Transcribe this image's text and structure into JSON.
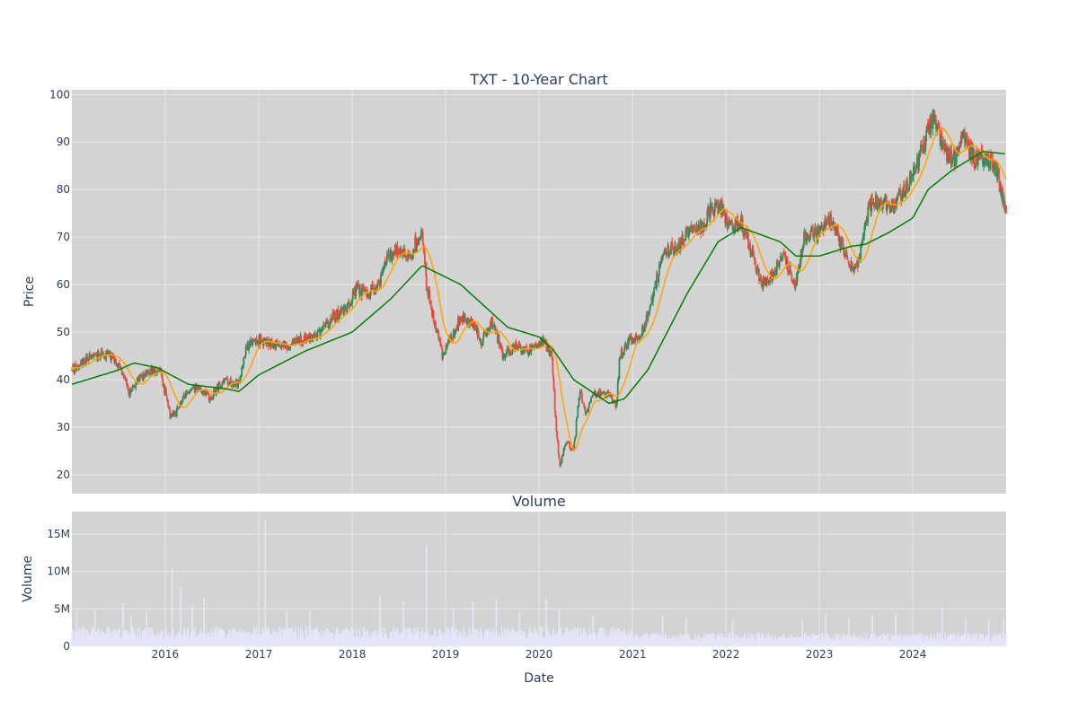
{
  "chart_data": [
    {
      "type": "candlestick",
      "title": "TXT - 10-Year Chart",
      "xlabel": "",
      "ylabel": "Price",
      "xlim": [
        "2015-01-01",
        "2024-12-31"
      ],
      "ylim": [
        16,
        101
      ],
      "y_ticks": [
        20,
        30,
        40,
        50,
        60,
        70,
        80,
        90,
        100
      ],
      "grid": true,
      "colors": {
        "up": "#2e8b57",
        "down": "#ef4a3c",
        "ma_short": "#ffa500",
        "ma_long": "#008000",
        "plot_bg": "#d3d3d3",
        "grid": "#e8e8e8"
      },
      "series": [
        {
          "kind": "close_price_anchors",
          "points": [
            [
              "2015-01-01",
              42
            ],
            [
              "2015-03-01",
              44.5
            ],
            [
              "2015-05-01",
              45.5
            ],
            [
              "2015-06-20",
              44
            ],
            [
              "2015-08-01",
              40
            ],
            [
              "2015-08-10",
              37
            ],
            [
              "2015-09-01",
              39
            ],
            [
              "2015-11-01",
              42
            ],
            [
              "2015-12-15",
              41.5
            ],
            [
              "2016-01-20",
              32.5
            ],
            [
              "2016-02-10",
              33
            ],
            [
              "2016-03-15",
              37
            ],
            [
              "2016-05-01",
              38.5
            ],
            [
              "2016-06-25",
              36
            ],
            [
              "2016-08-15",
              40
            ],
            [
              "2016-10-15",
              39
            ],
            [
              "2016-11-15",
              47
            ],
            [
              "2016-12-15",
              48.5
            ],
            [
              "2017-03-01",
              47.5
            ],
            [
              "2017-05-01",
              47
            ],
            [
              "2017-06-15",
              48.5
            ],
            [
              "2017-08-15",
              49
            ],
            [
              "2017-10-15",
              53
            ],
            [
              "2017-12-15",
              55
            ],
            [
              "2018-01-15",
              59
            ],
            [
              "2018-03-01",
              58
            ],
            [
              "2018-04-15",
              60
            ],
            [
              "2018-05-15",
              65.5
            ],
            [
              "2018-06-15",
              67
            ],
            [
              "2018-08-15",
              66
            ],
            [
              "2018-10-01",
              72
            ],
            [
              "2018-10-15",
              61
            ],
            [
              "2018-11-01",
              56
            ],
            [
              "2018-12-20",
              45
            ],
            [
              "2019-01-15",
              48
            ],
            [
              "2019-03-01",
              53
            ],
            [
              "2019-04-15",
              52
            ],
            [
              "2019-05-20",
              48
            ],
            [
              "2019-07-01",
              52
            ],
            [
              "2019-08-15",
              45
            ],
            [
              "2019-10-01",
              47
            ],
            [
              "2019-12-01",
              46
            ],
            [
              "2020-01-20",
              48
            ],
            [
              "2020-02-20",
              45
            ],
            [
              "2020-03-10",
              28
            ],
            [
              "2020-03-23",
              22
            ],
            [
              "2020-04-15",
              27
            ],
            [
              "2020-05-15",
              25
            ],
            [
              "2020-06-08",
              38
            ],
            [
              "2020-06-30",
              33
            ],
            [
              "2020-08-01",
              37
            ],
            [
              "2020-10-01",
              37
            ],
            [
              "2020-10-30",
              34
            ],
            [
              "2020-11-10",
              45
            ],
            [
              "2020-12-15",
              48
            ],
            [
              "2021-02-01",
              49
            ],
            [
              "2021-03-15",
              56
            ],
            [
              "2021-05-01",
              67
            ],
            [
              "2021-07-01",
              68
            ],
            [
              "2021-08-01",
              71
            ],
            [
              "2021-10-01",
              72
            ],
            [
              "2021-11-01",
              76
            ],
            [
              "2021-12-15",
              76
            ],
            [
              "2022-01-15",
              72
            ],
            [
              "2022-03-01",
              73
            ],
            [
              "2022-04-15",
              66
            ],
            [
              "2022-05-20",
              60
            ],
            [
              "2022-07-01",
              62
            ],
            [
              "2022-08-15",
              66
            ],
            [
              "2022-10-01",
              60
            ],
            [
              "2022-11-01",
              70
            ],
            [
              "2023-01-01",
              71
            ],
            [
              "2023-02-15",
              74
            ],
            [
              "2023-04-01",
              68
            ],
            [
              "2023-05-01",
              64
            ],
            [
              "2023-06-01",
              64
            ],
            [
              "2023-07-15",
              77
            ],
            [
              "2023-09-01",
              78
            ],
            [
              "2023-10-15",
              76
            ],
            [
              "2023-12-01",
              80
            ],
            [
              "2024-01-15",
              85
            ],
            [
              "2024-03-20",
              95
            ],
            [
              "2024-05-01",
              88
            ],
            [
              "2024-06-15",
              86
            ],
            [
              "2024-07-15",
              91
            ],
            [
              "2024-09-01",
              86
            ],
            [
              "2024-10-15",
              87
            ],
            [
              "2024-11-15",
              85
            ],
            [
              "2024-12-31",
              76
            ]
          ]
        },
        {
          "kind": "moving_average_long",
          "points": [
            [
              "2015-01-01",
              39
            ],
            [
              "2015-07-01",
              42
            ],
            [
              "2015-09-01",
              43.5
            ],
            [
              "2015-12-01",
              42.5
            ],
            [
              "2016-04-01",
              39
            ],
            [
              "2016-09-01",
              38
            ],
            [
              "2016-10-15",
              37.5
            ],
            [
              "2017-01-01",
              41
            ],
            [
              "2017-07-01",
              46
            ],
            [
              "2018-01-01",
              50
            ],
            [
              "2018-06-01",
              57
            ],
            [
              "2018-10-01",
              64
            ],
            [
              "2019-03-01",
              60
            ],
            [
              "2019-09-01",
              51
            ],
            [
              "2020-01-01",
              49
            ],
            [
              "2020-03-01",
              46
            ],
            [
              "2020-05-15",
              40
            ],
            [
              "2020-10-01",
              35
            ],
            [
              "2020-12-01",
              36
            ],
            [
              "2021-03-01",
              42
            ],
            [
              "2021-08-01",
              58
            ],
            [
              "2021-12-01",
              69
            ],
            [
              "2022-03-01",
              72
            ],
            [
              "2022-08-01",
              69
            ],
            [
              "2022-10-01",
              66
            ],
            [
              "2023-01-01",
              66
            ],
            [
              "2023-05-01",
              68
            ],
            [
              "2023-07-01",
              68.5
            ],
            [
              "2023-10-01",
              71
            ],
            [
              "2024-01-01",
              74
            ],
            [
              "2024-03-01",
              80
            ],
            [
              "2024-06-01",
              84
            ],
            [
              "2024-10-01",
              88
            ],
            [
              "2024-12-31",
              87.5
            ]
          ]
        }
      ]
    },
    {
      "type": "bar",
      "title": "Volume",
      "xlabel": "Date",
      "ylabel": "Volume",
      "xlim": [
        "2015-01-01",
        "2024-12-31"
      ],
      "ylim": [
        0,
        18000000
      ],
      "y_ticks": [
        0,
        5000000,
        10000000,
        15000000
      ],
      "y_tick_labels": [
        "0",
        "5M",
        "10M",
        "15M"
      ],
      "x_ticks": [
        "2016-01-01",
        "2017-01-01",
        "2018-01-01",
        "2019-01-01",
        "2020-01-01",
        "2021-01-01",
        "2022-01-01",
        "2023-01-01",
        "2024-01-01"
      ],
      "x_tick_labels": [
        "2016",
        "2017",
        "2018",
        "2019",
        "2020",
        "2021",
        "2022",
        "2023",
        "2024"
      ],
      "bar_color": "#e6e6fa",
      "spikes": [
        [
          "2015-01-20",
          4700000
        ],
        [
          "2015-04-01",
          5000000
        ],
        [
          "2015-07-20",
          5800000
        ],
        [
          "2015-08-20",
          4000000
        ],
        [
          "2015-10-20",
          4700000
        ],
        [
          "2016-01-28",
          10500000
        ],
        [
          "2016-03-01",
          7900000
        ],
        [
          "2016-04-15",
          5300000
        ],
        [
          "2016-06-01",
          6500000
        ],
        [
          "2017-01-26",
          16800000
        ],
        [
          "2017-04-20",
          4700000
        ],
        [
          "2017-07-20",
          4800000
        ],
        [
          "2018-04-20",
          6700000
        ],
        [
          "2018-07-20",
          6000000
        ],
        [
          "2018-10-18",
          13500000
        ],
        [
          "2019-01-31",
          5000000
        ],
        [
          "2019-04-18",
          6000000
        ],
        [
          "2019-07-18",
          6300000
        ],
        [
          "2019-10-17",
          4500000
        ],
        [
          "2020-01-29",
          6400000
        ],
        [
          "2020-03-20",
          5000000
        ],
        [
          "2020-07-30",
          4000000
        ],
        [
          "2021-04-28",
          4000000
        ],
        [
          "2021-07-29",
          3800000
        ],
        [
          "2022-01-27",
          3600000
        ],
        [
          "2022-10-27",
          3500000
        ],
        [
          "2023-01-25",
          4400000
        ],
        [
          "2023-04-27",
          3800000
        ],
        [
          "2023-07-27",
          4200000
        ],
        [
          "2023-10-26",
          4400000
        ],
        [
          "2024-04-25",
          5000000
        ],
        [
          "2024-07-25",
          3700000
        ],
        [
          "2024-10-24",
          3500000
        ],
        [
          "2024-12-20",
          3800000
        ]
      ],
      "typical_range": [
        800000,
        2600000
      ]
    }
  ]
}
